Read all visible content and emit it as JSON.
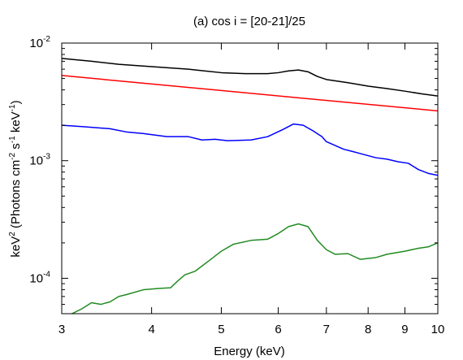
{
  "chart_data": {
    "type": "line",
    "title": "(a) cos i = [20-21]/25",
    "xlabel": "Energy (keV)",
    "ylabel": {
      "prefix": "keV",
      "prefix_sup": "2",
      "mid1": " (Photons cm",
      "sup1": "-2",
      "mid2": " s",
      "sup2": "-1",
      "mid3": " keV",
      "sup3": "-1",
      "suffix": ")"
    },
    "x_scale": "log",
    "y_scale": "log",
    "xlim": [
      3,
      10
    ],
    "ylim": [
      5e-05,
      0.01
    ],
    "x_ticks": [
      3,
      4,
      5,
      6,
      7,
      8,
      9,
      10
    ],
    "x_tick_labels": [
      "3",
      "4",
      "5",
      "6",
      "7",
      "8",
      "9",
      "10"
    ],
    "y_ticks": [
      {
        "value": 0.01,
        "base": "10",
        "exp": "-2"
      },
      {
        "value": 0.001,
        "base": "10",
        "exp": "-3"
      },
      {
        "value": 0.0001,
        "base": "10",
        "exp": "-4"
      }
    ],
    "y_minor_ticks": [
      6e-05,
      7e-05,
      8e-05,
      9e-05,
      0.0002,
      0.0003,
      0.0004,
      0.0005,
      0.0006,
      0.0007,
      0.0008,
      0.0009,
      0.002,
      0.003,
      0.004,
      0.005,
      0.006,
      0.007,
      0.008,
      0.009
    ],
    "grid": false,
    "legend": "none",
    "series": [
      {
        "color": "#000000",
        "x": [
          3.0,
          3.3,
          3.6,
          4.0,
          4.5,
          5.0,
          5.4,
          5.8,
          6.0,
          6.2,
          6.4,
          6.6,
          6.8,
          7.0,
          7.5,
          8.0,
          8.5,
          9.0,
          9.5,
          10.0
        ],
        "y": [
          0.0074,
          0.007,
          0.0066,
          0.0063,
          0.006,
          0.0056,
          0.0055,
          0.0055,
          0.0056,
          0.0058,
          0.0059,
          0.0057,
          0.0052,
          0.0049,
          0.0046,
          0.0043,
          0.0041,
          0.0039,
          0.0037,
          0.00355
        ]
      },
      {
        "color": "#ff0000",
        "x": [
          3.0,
          10.0
        ],
        "y": [
          0.0053,
          0.00265
        ]
      },
      {
        "color": "#0000ff",
        "x": [
          3.0,
          3.2,
          3.5,
          3.7,
          3.9,
          4.2,
          4.5,
          4.7,
          4.9,
          5.1,
          5.5,
          5.8,
          6.1,
          6.3,
          6.5,
          6.7,
          6.9,
          7.0,
          7.4,
          7.6,
          7.8,
          8.2,
          8.5,
          8.8,
          9.1,
          9.4,
          9.7,
          10.0
        ],
        "y": [
          0.002,
          0.00195,
          0.00187,
          0.00175,
          0.0017,
          0.0016,
          0.0016,
          0.0015,
          0.00152,
          0.00148,
          0.0015,
          0.0016,
          0.00185,
          0.00205,
          0.002,
          0.0018,
          0.0016,
          0.00145,
          0.00125,
          0.0012,
          0.00115,
          0.00106,
          0.00103,
          0.00098,
          0.00095,
          0.00084,
          0.00078,
          0.00075
        ]
      },
      {
        "color": "#228B22",
        "x": [
          3.0,
          3.1,
          3.2,
          3.3,
          3.4,
          3.5,
          3.6,
          3.7,
          3.9,
          4.1,
          4.25,
          4.35,
          4.45,
          4.6,
          4.8,
          5.0,
          5.2,
          5.5,
          5.8,
          6.0,
          6.2,
          6.4,
          6.6,
          6.8,
          7.0,
          7.2,
          7.5,
          7.8,
          8.2,
          8.5,
          9.0,
          9.4,
          9.7,
          10.0
        ],
        "y": [
          4.8e-05,
          5e-05,
          5.5e-05,
          6.2e-05,
          6e-05,
          6.3e-05,
          7e-05,
          7.3e-05,
          8e-05,
          8.2e-05,
          8.3e-05,
          9.5e-05,
          0.000107,
          0.000115,
          0.00014,
          0.00017,
          0.000195,
          0.00021,
          0.000215,
          0.00024,
          0.000275,
          0.00029,
          0.000275,
          0.00021,
          0.000175,
          0.00016,
          0.000162,
          0.000145,
          0.00015,
          0.00016,
          0.00017,
          0.00018,
          0.000185,
          0.0002
        ]
      }
    ]
  }
}
